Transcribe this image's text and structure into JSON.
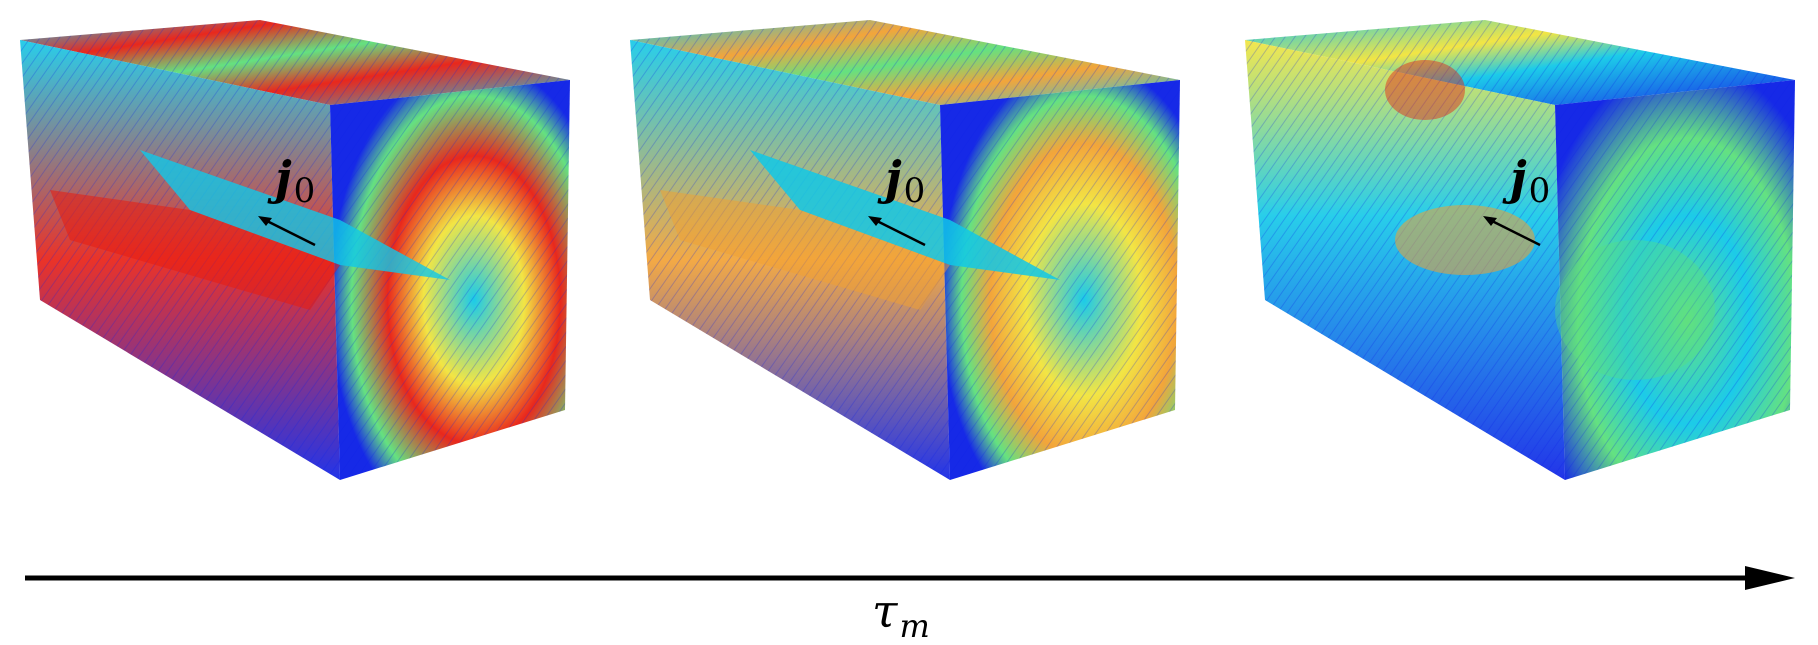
{
  "figure": {
    "panels": [
      {
        "vector_label": "j",
        "vector_subscript": "0"
      },
      {
        "vector_label": "j",
        "vector_subscript": "0"
      },
      {
        "vector_label": "j",
        "vector_subscript": "0"
      }
    ],
    "axis_label": "τ",
    "axis_subscript": "m",
    "colors": {
      "low": "#0a1ee6",
      "mid_low": "#10c8e8",
      "mid": "#5ce07a",
      "mid_high": "#f2e43a",
      "high": "#e81c10"
    }
  }
}
